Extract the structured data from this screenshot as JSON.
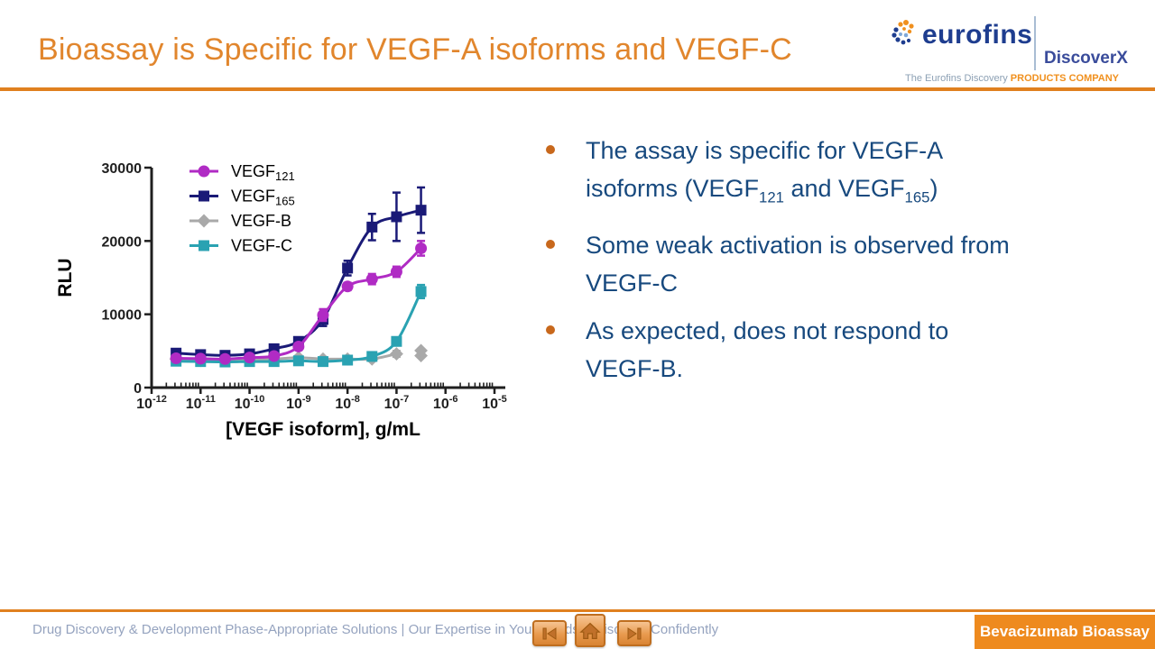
{
  "slide": {
    "title": "Bioassay is Specific for VEGF-A isoforms and VEGF-C",
    "badge": "Bevacizumab Bioassay",
    "footer_text": "Drug Discovery & Development Phase-Appropriate Solutions | Our Expertise in Your Hands – Discover Confidently"
  },
  "logo": {
    "brand": "eurofins",
    "sub_brand": "DiscoverX",
    "tagline_prefix": "The Eurofins Discovery ",
    "tagline_bold": "PRODUCTS COMPANY"
  },
  "nav": {
    "prev": "previous-slide",
    "home": "home",
    "next": "next-slide"
  },
  "colors": {
    "accent_orange": "#E0801F",
    "title_orange": "#E1862D",
    "badge_orange": "#EE8A1E",
    "bullet_text_navy": "#17497E",
    "bullet_dot_orange": "#C8681C",
    "footer_text_blue_gray": "#95A3BF",
    "logo_navy": "#1E3D8F",
    "tagline_orange": "#F0901E",
    "series_magenta": "#B02BC4",
    "series_navy": "#1A1A77",
    "series_gray": "#A9A9A9",
    "series_teal": "#2AA2B2"
  },
  "bullets": [
    {
      "lines": [
        [
          {
            "t": "The assay is specific for VEGF-A"
          }
        ],
        [
          {
            "t": "isoforms (VEGF"
          },
          {
            "t": "121",
            "sub": true
          },
          {
            "t": " and VEGF"
          },
          {
            "t": "165",
            "sub": true
          },
          {
            "t": ")"
          }
        ]
      ]
    },
    {
      "lines": [
        [
          {
            "t": "Some weak activation is observed from"
          }
        ],
        [
          {
            "t": "VEGF-C"
          }
        ]
      ]
    },
    {
      "lines": [
        [
          {
            "t": "As expected, does not respond to"
          }
        ],
        [
          {
            "t": "VEGF-B."
          }
        ]
      ]
    }
  ],
  "chart_data": {
    "type": "scatter",
    "title": "",
    "xlabel": "[VEGF isoform], g/mL",
    "ylabel": "RLU",
    "x_scale": "log",
    "xlim_exponents": [
      -12,
      -5
    ],
    "ylim": [
      0,
      30000
    ],
    "y_ticks": [
      0,
      10000,
      20000,
      30000
    ],
    "x_tick_exponents": [
      -12,
      -11,
      -10,
      -9,
      -8,
      -7,
      -6,
      -5
    ],
    "grid": false,
    "legend_position": "inside-top-left",
    "series": [
      {
        "key": "vegf121",
        "name": [
          {
            "t": "VEGF"
          },
          {
            "t": "121",
            "sub": true
          }
        ],
        "color": "#B02BC4",
        "marker": "circle",
        "x": [
          3.16e-12,
          1e-11,
          3.16e-11,
          1e-10,
          3.16e-10,
          1e-09,
          3.16e-09,
          1e-08,
          3.16e-08,
          1e-07,
          3.16e-07
        ],
        "y": [
          4000,
          3950,
          3900,
          4100,
          4300,
          5600,
          9900,
          13800,
          14800,
          15800,
          19000
        ],
        "yerr": [
          350,
          300,
          300,
          300,
          350,
          450,
          800,
          500,
          700,
          700,
          1000
        ]
      },
      {
        "key": "vegf165",
        "name": [
          {
            "t": "VEGF"
          },
          {
            "t": "165",
            "sub": true
          }
        ],
        "color": "#1A1A77",
        "marker": "square",
        "x": [
          3.16e-12,
          1e-11,
          3.16e-11,
          1e-10,
          3.16e-10,
          1e-09,
          3.16e-09,
          1e-08,
          3.16e-08,
          1e-07,
          3.16e-07
        ],
        "y": [
          4700,
          4500,
          4400,
          4600,
          5300,
          6300,
          9300,
          16300,
          21900,
          23300,
          24200
        ],
        "yerr": [
          400,
          350,
          300,
          350,
          400,
          500,
          900,
          1000,
          1800,
          3300,
          3100
        ]
      },
      {
        "key": "vegfb",
        "name": [
          {
            "t": "VEGF-B"
          }
        ],
        "color": "#A9A9A9",
        "marker": "diamond",
        "x": [
          3.16e-12,
          1e-11,
          3.16e-11,
          1e-10,
          3.16e-10,
          1e-09,
          3.16e-09,
          1e-08,
          3.16e-08,
          1e-07
        ],
        "y": [
          3900,
          3700,
          3800,
          3800,
          3900,
          4100,
          3900,
          3900,
          3900,
          4600
        ],
        "yerr": [
          250,
          200,
          200,
          200,
          200,
          250,
          200,
          200,
          250,
          400
        ],
        "extra_points": [
          {
            "x": 3.16e-07,
            "y": 4350,
            "yerr": 200
          },
          {
            "x": 3.16e-07,
            "y": 5050,
            "yerr": 200
          }
        ]
      },
      {
        "key": "vegfc",
        "name": [
          {
            "t": "VEGF-C"
          }
        ],
        "color": "#2AA2B2",
        "marker": "square",
        "x": [
          3.16e-12,
          1e-11,
          3.16e-11,
          1e-10,
          3.16e-10,
          1e-09,
          3.16e-09,
          1e-08,
          3.16e-08,
          1e-07,
          3.16e-07
        ],
        "y": [
          3600,
          3550,
          3500,
          3550,
          3550,
          3650,
          3550,
          3750,
          4250,
          6300,
          13100
        ],
        "yerr": [
          250,
          200,
          200,
          200,
          200,
          250,
          200,
          250,
          350,
          500,
          900
        ]
      }
    ]
  }
}
